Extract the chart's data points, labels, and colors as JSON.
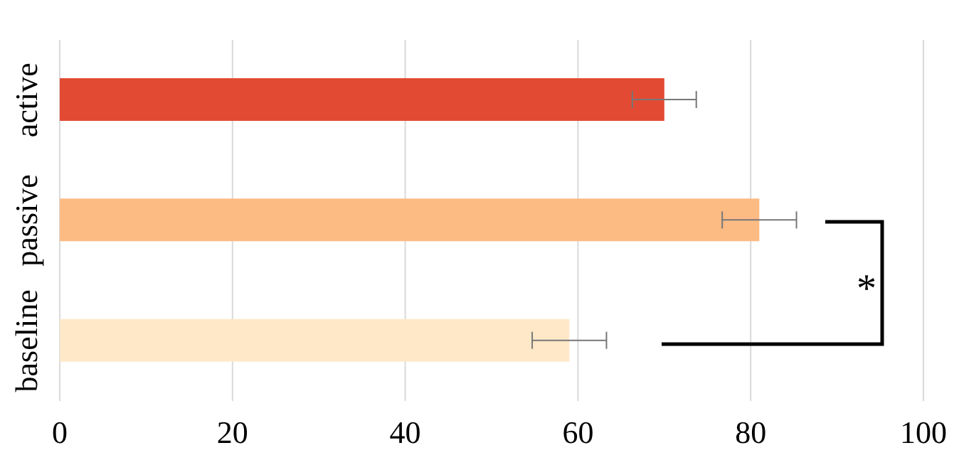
{
  "chart_data": {
    "type": "bar",
    "orientation": "horizontal",
    "categories": [
      "active",
      "passive",
      "baseline"
    ],
    "values": [
      70,
      81,
      59
    ],
    "colors": [
      "#e34a33",
      "#fdbb84",
      "#fee8c8"
    ],
    "errors": [
      3.7,
      4.3,
      4.3
    ],
    "xlim": [
      0,
      100
    ],
    "xticks": [
      0,
      20,
      40,
      60,
      80,
      100
    ],
    "grid": "x",
    "legend": false,
    "annotations": [
      "*"
    ]
  }
}
